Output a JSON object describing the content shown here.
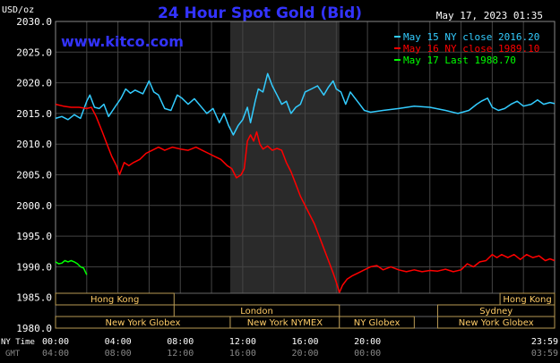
{
  "chart_data": {
    "type": "line",
    "title": "24 Hour Spot Gold (Bid)",
    "watermark": "www.kitco.com",
    "date_label": "May 17, 2023 01:35",
    "y_unit_label": "USD/oz",
    "ylim": [
      1980,
      2030
    ],
    "y_ticks": [
      "2030.0",
      "2025.0",
      "2020.0",
      "2015.0",
      "2010.0",
      "2005.0",
      "2000.0",
      "1995.0",
      "1990.0",
      "1985.0",
      "1980.0"
    ],
    "x_ticks_ny": [
      "00:00",
      "04:00",
      "08:00",
      "12:00",
      "16:00",
      "20:00",
      "23:59"
    ],
    "x_ticks_gmt": [
      "04:00",
      "08:00",
      "12:00",
      "16:00",
      "20:00",
      "00:00",
      "03:59"
    ],
    "x_row_label_ny": "NY Time",
    "x_row_label_gmt": "GMT",
    "colors": {
      "series_may15": "#33ccff",
      "series_may16": "#ff0000",
      "series_may17": "#00ff00",
      "title": "#3333ff",
      "watermark": "#3333ff",
      "session_label": "#ffcc66",
      "grid": "#444444",
      "highlight": "#2a2a2a"
    },
    "legend": [
      {
        "text": "May 15 NY close 2016.20",
        "color": "#33ccff"
      },
      {
        "text": "May 16 NY close 1989.10",
        "color": "#ff0000"
      },
      {
        "text": "May 17 Last 1988.70",
        "color": "#00ff00"
      }
    ],
    "highlight_hours": [
      11.2,
      18.2
    ],
    "sessions": [
      {
        "label": "Hong Kong",
        "start": 0,
        "end": 7.6,
        "row": 0
      },
      {
        "label": "Hong Kong",
        "start": 28.5,
        "end": 32.0,
        "row": 0
      },
      {
        "label": "London",
        "start": 7.6,
        "end": 18.2,
        "row": 1
      },
      {
        "label": "Sydney",
        "start": 24.5,
        "end": 32.0,
        "row": 1
      },
      {
        "label": "New York Globex",
        "start": 0,
        "end": 11.2,
        "row": 2
      },
      {
        "label": "New York NYMEX",
        "start": 11.2,
        "end": 18.2,
        "row": 2
      },
      {
        "label": "NY Globex",
        "start": 18.2,
        "end": 23.0,
        "row": 2
      },
      {
        "label": "New York Globex",
        "start": 24.5,
        "end": 32.0,
        "row": 2
      }
    ],
    "series": [
      {
        "name": "May 15",
        "color": "#33ccff",
        "points": [
          [
            0,
            2014.2
          ],
          [
            0.4,
            2014.5
          ],
          [
            0.8,
            2014.0
          ],
          [
            1.2,
            2014.8
          ],
          [
            1.6,
            2014.2
          ],
          [
            2.0,
            2017.0
          ],
          [
            2.2,
            2018.0
          ],
          [
            2.5,
            2016.0
          ],
          [
            2.8,
            2015.8
          ],
          [
            3.1,
            2016.5
          ],
          [
            3.4,
            2014.5
          ],
          [
            3.8,
            2016.0
          ],
          [
            4.2,
            2017.5
          ],
          [
            4.5,
            2019.0
          ],
          [
            4.8,
            2018.3
          ],
          [
            5.1,
            2018.8
          ],
          [
            5.6,
            2018.2
          ],
          [
            6.0,
            2020.3
          ],
          [
            6.3,
            2018.5
          ],
          [
            6.6,
            2018.0
          ],
          [
            7.0,
            2015.8
          ],
          [
            7.4,
            2015.5
          ],
          [
            7.8,
            2018.0
          ],
          [
            8.1,
            2017.5
          ],
          [
            8.5,
            2016.5
          ],
          [
            8.9,
            2017.4
          ],
          [
            9.3,
            2016.2
          ],
          [
            9.7,
            2015.0
          ],
          [
            10.1,
            2015.8
          ],
          [
            10.5,
            2013.5
          ],
          [
            10.8,
            2015.0
          ],
          [
            11.1,
            2013.0
          ],
          [
            11.4,
            2011.5
          ],
          [
            11.7,
            2013.0
          ],
          [
            12.0,
            2014.0
          ],
          [
            12.3,
            2016.0
          ],
          [
            12.5,
            2013.5
          ],
          [
            12.8,
            2017.0
          ],
          [
            13.0,
            2019.0
          ],
          [
            13.3,
            2018.5
          ],
          [
            13.6,
            2021.5
          ],
          [
            13.9,
            2019.5
          ],
          [
            14.2,
            2018.0
          ],
          [
            14.5,
            2016.5
          ],
          [
            14.8,
            2017.0
          ],
          [
            15.1,
            2015.0
          ],
          [
            15.4,
            2016.0
          ],
          [
            15.7,
            2016.5
          ],
          [
            16.0,
            2018.5
          ],
          [
            16.4,
            2019.0
          ],
          [
            16.8,
            2019.5
          ],
          [
            17.2,
            2018.0
          ],
          [
            17.5,
            2019.3
          ],
          [
            17.8,
            2020.3
          ],
          [
            18.0,
            2019.0
          ],
          [
            18.3,
            2018.5
          ],
          [
            18.6,
            2016.5
          ],
          [
            18.9,
            2018.5
          ],
          [
            19.2,
            2017.5
          ],
          [
            19.5,
            2016.5
          ],
          [
            19.8,
            2015.5
          ],
          [
            20.2,
            2015.2
          ],
          [
            21,
            2015.5
          ],
          [
            22,
            2015.8
          ],
          [
            23,
            2016.2
          ],
          [
            24,
            2016.0
          ],
          [
            25,
            2015.5
          ],
          [
            25.8,
            2015.0
          ],
          [
            26.5,
            2015.5
          ],
          [
            27,
            2016.5
          ],
          [
            27.3,
            2017.0
          ],
          [
            27.7,
            2017.5
          ],
          [
            28,
            2016.0
          ],
          [
            28.4,
            2015.5
          ],
          [
            28.8,
            2015.8
          ],
          [
            29.2,
            2016.5
          ],
          [
            29.6,
            2017.0
          ],
          [
            30,
            2016.2
          ],
          [
            30.5,
            2016.5
          ],
          [
            30.9,
            2017.2
          ],
          [
            31.3,
            2016.5
          ],
          [
            31.7,
            2016.8
          ],
          [
            32,
            2016.6
          ]
        ]
      },
      {
        "name": "May 16",
        "color": "#ff0000",
        "points": [
          [
            0,
            2016.5
          ],
          [
            0.5,
            2016.2
          ],
          [
            1.0,
            2016.0
          ],
          [
            1.5,
            2016.0
          ],
          [
            2.0,
            2015.8
          ],
          [
            2.3,
            2016.0
          ],
          [
            2.6,
            2014.5
          ],
          [
            3.0,
            2012.0
          ],
          [
            3.3,
            2010.0
          ],
          [
            3.6,
            2008.0
          ],
          [
            3.9,
            2006.5
          ],
          [
            4.1,
            2005.0
          ],
          [
            4.4,
            2007.0
          ],
          [
            4.7,
            2006.5
          ],
          [
            5.0,
            2007.0
          ],
          [
            5.4,
            2007.5
          ],
          [
            5.8,
            2008.5
          ],
          [
            6.2,
            2009.0
          ],
          [
            6.6,
            2009.5
          ],
          [
            7.0,
            2009.0
          ],
          [
            7.5,
            2009.5
          ],
          [
            8.0,
            2009.2
          ],
          [
            8.5,
            2009.0
          ],
          [
            9.0,
            2009.5
          ],
          [
            9.4,
            2009.0
          ],
          [
            9.8,
            2008.5
          ],
          [
            10.2,
            2008.0
          ],
          [
            10.6,
            2007.5
          ],
          [
            11.0,
            2006.5
          ],
          [
            11.3,
            2006.0
          ],
          [
            11.6,
            2004.5
          ],
          [
            11.9,
            2005.0
          ],
          [
            12.1,
            2006.0
          ],
          [
            12.3,
            2010.5
          ],
          [
            12.5,
            2011.5
          ],
          [
            12.7,
            2010.5
          ],
          [
            12.9,
            2012.0
          ],
          [
            13.1,
            2010.0
          ],
          [
            13.3,
            2009.2
          ],
          [
            13.6,
            2009.7
          ],
          [
            13.9,
            2009.0
          ],
          [
            14.2,
            2009.3
          ],
          [
            14.5,
            2009.0
          ],
          [
            14.8,
            2007.0
          ],
          [
            15.1,
            2005.5
          ],
          [
            15.4,
            2003.5
          ],
          [
            15.7,
            2001.5
          ],
          [
            16.0,
            2000.0
          ],
          [
            16.3,
            1998.5
          ],
          [
            16.6,
            1997.0
          ],
          [
            16.9,
            1995.0
          ],
          [
            17.2,
            1993.0
          ],
          [
            17.5,
            1991.0
          ],
          [
            17.8,
            1989.0
          ],
          [
            18.0,
            1987.5
          ],
          [
            18.2,
            1985.8
          ],
          [
            18.4,
            1987.0
          ],
          [
            18.7,
            1988.0
          ],
          [
            19.0,
            1988.5
          ],
          [
            19.4,
            1989.0
          ],
          [
            19.8,
            1989.5
          ],
          [
            20.2,
            1990.0
          ],
          [
            20.6,
            1990.2
          ],
          [
            21,
            1989.5
          ],
          [
            21.5,
            1990.0
          ],
          [
            22,
            1989.5
          ],
          [
            22.5,
            1989.2
          ],
          [
            23,
            1989.5
          ],
          [
            23.5,
            1989.2
          ],
          [
            24,
            1989.4
          ],
          [
            24.5,
            1989.3
          ],
          [
            25,
            1989.6
          ],
          [
            25.5,
            1989.2
          ],
          [
            26,
            1989.5
          ],
          [
            26.4,
            1990.5
          ],
          [
            26.8,
            1990.0
          ],
          [
            27.2,
            1990.8
          ],
          [
            27.6,
            1991.0
          ],
          [
            28.0,
            1992.0
          ],
          [
            28.3,
            1991.5
          ],
          [
            28.6,
            1992.0
          ],
          [
            29,
            1991.5
          ],
          [
            29.4,
            1992.0
          ],
          [
            29.8,
            1991.2
          ],
          [
            30.2,
            1992.0
          ],
          [
            30.6,
            1991.5
          ],
          [
            31,
            1991.8
          ],
          [
            31.4,
            1991.0
          ],
          [
            31.7,
            1991.3
          ],
          [
            32,
            1991.0
          ]
        ]
      },
      {
        "name": "May 17",
        "color": "#00ff00",
        "points": [
          [
            0,
            1990.8
          ],
          [
            0.2,
            1990.5
          ],
          [
            0.4,
            1990.6
          ],
          [
            0.6,
            1991.0
          ],
          [
            0.8,
            1990.8
          ],
          [
            1.0,
            1991.0
          ],
          [
            1.2,
            1990.8
          ],
          [
            1.4,
            1990.5
          ],
          [
            1.6,
            1990.0
          ],
          [
            1.8,
            1989.8
          ],
          [
            2.0,
            1988.7
          ]
        ]
      }
    ]
  }
}
